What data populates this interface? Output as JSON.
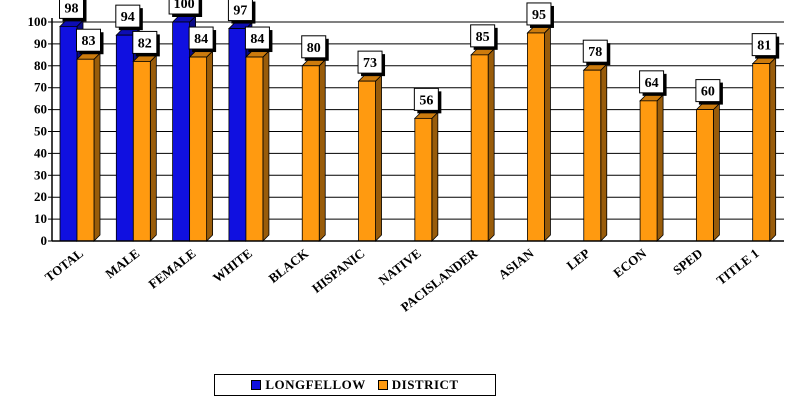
{
  "chart_data": {
    "type": "bar",
    "title": "",
    "xlabel": "",
    "ylabel": "",
    "ylim": [
      0,
      100
    ],
    "yticks": [
      0,
      10,
      20,
      30,
      40,
      50,
      60,
      70,
      80,
      90,
      100
    ],
    "categories": [
      "TOTAL",
      "MALE",
      "FEMALE",
      "WHITE",
      "BLACK",
      "HISPANIC",
      "NATIVE",
      "PACISLANDER",
      "ASIAN",
      "LEP",
      "ECON",
      "SPED",
      "TITLE 1"
    ],
    "series": [
      {
        "name": "LONGFELLOW",
        "color": "#1010e0",
        "values": [
          98,
          94,
          100,
          97,
          null,
          null,
          null,
          null,
          null,
          null,
          null,
          null,
          null
        ]
      },
      {
        "name": "DISTRICT",
        "color": "#ff9a10",
        "values": [
          83,
          82,
          84,
          84,
          80,
          73,
          56,
          85,
          95,
          78,
          64,
          60,
          81
        ]
      }
    ],
    "grid": true,
    "legend_position": "bottom"
  }
}
